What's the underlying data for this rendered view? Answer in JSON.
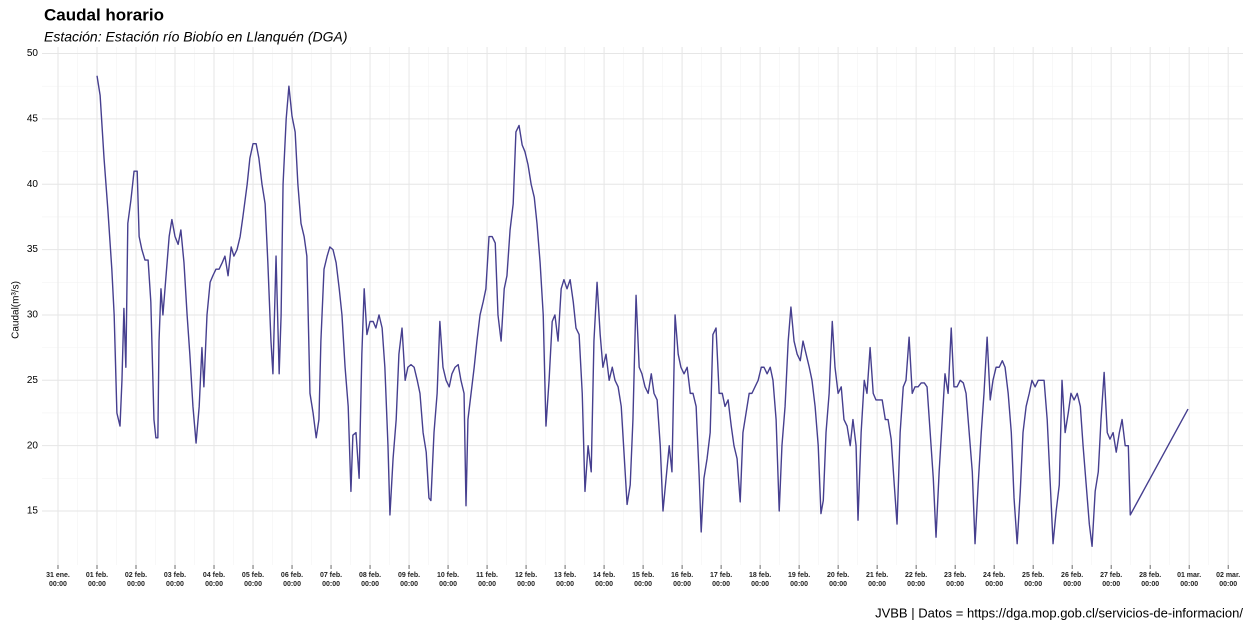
{
  "chart_data": {
    "type": "line",
    "title": "Caudal horario",
    "subtitle": "Estación: Estación río Biobío en Llanquén (DGA)",
    "y_label": "Caudal(m³/s)",
    "caption": "JVBB | Datos = https://dga.mop.gob.cl/servicios-de-informacion/",
    "color": "#463f8f",
    "grid": true,
    "xlim": [
      -0.41,
      30.38
    ],
    "ylim": [
      10.87,
      50.5
    ],
    "yticks": [
      15,
      20,
      25,
      30,
      35,
      40,
      45,
      50
    ],
    "xticks": [
      {
        "value": 0,
        "label": "31 ene.\n00:00"
      },
      {
        "value": 1,
        "label": "01 feb.\n00:00"
      },
      {
        "value": 2,
        "label": "02 feb.\n00:00"
      },
      {
        "value": 3,
        "label": "03 feb.\n00:00"
      },
      {
        "value": 4,
        "label": "04 feb.\n00:00"
      },
      {
        "value": 5,
        "label": "05 feb.\n00:00"
      },
      {
        "value": 6,
        "label": "06 feb.\n00:00"
      },
      {
        "value": 7,
        "label": "07 feb.\n00:00"
      },
      {
        "value": 8,
        "label": "08 feb.\n00:00"
      },
      {
        "value": 9,
        "label": "09 feb.\n00:00"
      },
      {
        "value": 10,
        "label": "10 feb.\n00:00"
      },
      {
        "value": 11,
        "label": "11 feb.\n00:00"
      },
      {
        "value": 12,
        "label": "12 feb.\n00:00"
      },
      {
        "value": 13,
        "label": "13 feb.\n00:00"
      },
      {
        "value": 14,
        "label": "14 feb.\n00:00"
      },
      {
        "value": 15,
        "label": "15 feb.\n00:00"
      },
      {
        "value": 16,
        "label": "16 feb.\n00:00"
      },
      {
        "value": 17,
        "label": "17 feb.\n00:00"
      },
      {
        "value": 18,
        "label": "18 feb.\n00:00"
      },
      {
        "value": 19,
        "label": "19 feb.\n00:00"
      },
      {
        "value": 20,
        "label": "20 feb.\n00:00"
      },
      {
        "value": 21,
        "label": "21 feb.\n00:00"
      },
      {
        "value": 22,
        "label": "22 feb.\n00:00"
      },
      {
        "value": 23,
        "label": "23 feb.\n00:00"
      },
      {
        "value": 24,
        "label": "24 feb.\n00:00"
      },
      {
        "value": 25,
        "label": "25 feb.\n00:00"
      },
      {
        "value": 26,
        "label": "26 feb.\n00:00"
      },
      {
        "value": 27,
        "label": "27 feb.\n00:00"
      },
      {
        "value": 28,
        "label": "28 feb.\n00:00"
      },
      {
        "value": 29,
        "label": "01 mar.\n00:00"
      },
      {
        "value": 30,
        "label": "02 mar.\n00:00"
      }
    ],
    "x": [
      1.0,
      1.08,
      1.18,
      1.28,
      1.38,
      1.44,
      1.51,
      1.59,
      1.64,
      1.69,
      1.74,
      1.79,
      1.87,
      1.95,
      2.03,
      2.08,
      2.15,
      2.23,
      2.31,
      2.38,
      2.46,
      2.51,
      2.56,
      2.59,
      2.64,
      2.69,
      2.77,
      2.85,
      2.92,
      3.0,
      3.08,
      3.15,
      3.23,
      3.31,
      3.38,
      3.46,
      3.54,
      3.62,
      3.69,
      3.74,
      3.82,
      3.9,
      3.97,
      4.05,
      4.13,
      4.21,
      4.28,
      4.36,
      4.44,
      4.51,
      4.59,
      4.67,
      4.74,
      4.85,
      4.92,
      5.0,
      5.08,
      5.15,
      5.23,
      5.31,
      5.38,
      5.46,
      5.51,
      5.59,
      5.67,
      5.72,
      5.77,
      5.85,
      5.92,
      6.0,
      6.08,
      6.15,
      6.23,
      6.31,
      6.38,
      6.46,
      6.54,
      6.62,
      6.69,
      6.74,
      6.82,
      6.9,
      6.97,
      7.05,
      7.13,
      7.21,
      7.28,
      7.36,
      7.44,
      7.51,
      7.56,
      7.64,
      7.72,
      7.79,
      7.85,
      7.92,
      8.0,
      8.08,
      8.15,
      8.23,
      8.31,
      8.38,
      8.46,
      8.51,
      8.59,
      8.67,
      8.74,
      8.82,
      8.9,
      8.97,
      9.05,
      9.13,
      9.21,
      9.28,
      9.36,
      9.44,
      9.51,
      9.56,
      9.64,
      9.72,
      9.79,
      9.87,
      9.95,
      10.03,
      10.1,
      10.18,
      10.26,
      10.33,
      10.41,
      10.46,
      10.51,
      10.59,
      10.67,
      10.74,
      10.82,
      10.9,
      10.97,
      11.05,
      11.13,
      11.21,
      11.28,
      11.36,
      11.44,
      11.51,
      11.59,
      11.67,
      11.74,
      11.82,
      11.9,
      11.97,
      12.05,
      12.13,
      12.21,
      12.28,
      12.36,
      12.44,
      12.51,
      12.59,
      12.67,
      12.74,
      12.82,
      12.9,
      12.97,
      13.05,
      13.13,
      13.21,
      13.28,
      13.36,
      13.44,
      13.51,
      13.59,
      13.67,
      13.74,
      13.82,
      13.9,
      13.97,
      14.05,
      14.13,
      14.21,
      14.28,
      14.36,
      14.44,
      14.51,
      14.59,
      14.67,
      14.74,
      14.82,
      14.9,
      14.97,
      15.05,
      15.13,
      15.21,
      15.28,
      15.36,
      15.44,
      15.51,
      15.59,
      15.67,
      15.74,
      15.82,
      15.9,
      15.97,
      16.05,
      16.13,
      16.21,
      16.28,
      16.36,
      16.44,
      16.49,
      16.56,
      16.64,
      16.72,
      16.79,
      16.87,
      16.95,
      17.03,
      17.1,
      17.18,
      17.26,
      17.33,
      17.41,
      17.49,
      17.56,
      17.64,
      17.72,
      17.79,
      17.87,
      17.95,
      18.03,
      18.1,
      18.18,
      18.26,
      18.33,
      18.41,
      18.49,
      18.56,
      18.64,
      18.72,
      18.79,
      18.87,
      18.95,
      19.03,
      19.1,
      19.18,
      19.26,
      19.33,
      19.41,
      19.49,
      19.56,
      19.62,
      19.69,
      19.77,
      19.85,
      19.92,
      20.0,
      20.08,
      20.15,
      20.23,
      20.31,
      20.38,
      20.46,
      20.51,
      20.59,
      20.67,
      20.74,
      20.82,
      20.9,
      20.97,
      21.05,
      21.13,
      21.21,
      21.28,
      21.36,
      21.44,
      21.51,
      21.59,
      21.67,
      21.74,
      21.82,
      21.9,
      21.97,
      22.05,
      22.13,
      22.21,
      22.28,
      22.36,
      22.44,
      22.51,
      22.59,
      22.67,
      22.74,
      22.82,
      22.9,
      22.97,
      23.05,
      23.13,
      23.21,
      23.28,
      23.36,
      23.44,
      23.51,
      23.59,
      23.67,
      23.74,
      23.82,
      23.9,
      23.97,
      24.05,
      24.13,
      24.21,
      24.28,
      24.36,
      24.44,
      24.51,
      24.59,
      24.67,
      24.74,
      24.82,
      24.9,
      24.97,
      25.05,
      25.13,
      25.21,
      25.28,
      25.36,
      25.44,
      25.51,
      25.59,
      25.67,
      25.74,
      25.82,
      25.9,
      25.97,
      26.05,
      26.13,
      26.21,
      26.28,
      26.36,
      26.44,
      26.51,
      26.59,
      26.67,
      26.74,
      26.82,
      26.9,
      26.97,
      27.05,
      27.13,
      27.21,
      27.28,
      27.36,
      27.44,
      27.49,
      28.97
    ],
    "values": [
      48.3,
      46.8,
      42,
      38,
      33.5,
      30,
      22.5,
      21.5,
      25,
      30.5,
      26,
      37,
      38.8,
      41,
      41,
      36,
      35,
      34.2,
      34.2,
      31,
      22,
      20.6,
      20.6,
      28,
      32,
      30,
      33,
      36,
      37.3,
      36,
      35.4,
      36.5,
      34,
      30,
      27,
      23,
      20.2,
      23,
      27.5,
      24.5,
      30,
      32.5,
      33,
      33.5,
      33.5,
      34,
      34.5,
      33,
      35.2,
      34.5,
      35,
      36,
      37.5,
      40,
      42,
      43.1,
      43.1,
      42,
      40,
      38.5,
      34,
      28,
      25.5,
      34.5,
      25.5,
      30,
      40,
      45,
      47.5,
      45.2,
      44,
      40,
      37,
      36,
      34.5,
      24,
      22.5,
      20.6,
      22,
      28,
      33.5,
      34.5,
      35.2,
      35,
      34,
      32,
      30,
      26,
      23,
      16.5,
      20.8,
      21,
      17.5,
      27,
      32,
      28.5,
      29.5,
      29.5,
      29,
      30,
      29,
      26,
      20,
      14.7,
      19,
      22,
      27,
      29,
      25,
      26,
      26.2,
      26,
      25,
      24,
      21,
      19.5,
      16,
      15.8,
      21,
      24,
      29.5,
      26,
      25,
      24.5,
      25.5,
      26,
      26.2,
      25,
      24,
      15.4,
      22,
      24,
      26,
      28,
      30,
      31,
      32,
      36,
      36,
      35.5,
      30,
      28,
      32,
      33,
      36.5,
      38.5,
      44,
      44.5,
      43,
      42.5,
      41.5,
      40,
      39,
      37,
      34,
      30,
      21.5,
      25,
      29.5,
      30,
      28,
      32,
      32.7,
      32,
      32.7,
      31,
      29,
      28.5,
      24,
      16.5,
      20,
      18,
      28,
      32.5,
      28.5,
      26,
      27,
      25,
      26,
      25,
      24.5,
      23,
      19.5,
      15.5,
      17,
      22,
      31.5,
      26,
      25.5,
      24.5,
      24,
      25.5,
      24,
      23.5,
      20,
      15,
      17.5,
      20,
      18,
      30,
      27,
      26,
      25.5,
      26,
      24,
      24,
      23,
      17.5,
      13.4,
      17.5,
      19,
      21,
      28.5,
      29,
      24,
      24,
      23,
      23.5,
      21.5,
      20,
      19,
      15.7,
      21,
      22.5,
      24,
      24,
      24.5,
      25,
      26,
      26,
      25.5,
      26,
      25,
      22,
      15,
      20,
      23,
      28,
      30.6,
      28,
      27,
      26.5,
      28,
      27,
      26,
      25,
      23,
      20,
      14.8,
      15.8,
      21,
      24,
      29.5,
      26,
      24,
      24.5,
      22,
      21.5,
      20,
      22,
      20,
      14.3,
      21,
      25,
      24,
      27.5,
      24,
      23.5,
      23.5,
      23.5,
      22,
      22,
      20.5,
      17,
      14,
      21,
      24.5,
      25,
      28.3,
      24,
      24.5,
      24.5,
      24.8,
      24.8,
      24.5,
      21,
      17.5,
      13,
      18,
      22,
      25.5,
      24,
      29,
      24.5,
      24.5,
      25,
      24.8,
      24,
      21,
      18,
      12.5,
      17,
      21,
      24,
      28.3,
      23.5,
      25,
      26,
      26,
      26.5,
      26,
      24,
      21,
      16,
      12.5,
      16.5,
      21,
      23,
      24,
      25,
      24.5,
      25,
      25,
      25,
      22,
      17,
      12.5,
      15,
      17,
      25,
      21,
      22.5,
      24,
      23.5,
      24,
      23,
      20,
      17,
      14,
      12.3,
      16.5,
      18,
      22,
      25.6,
      21,
      20.5,
      21,
      19.5,
      21,
      22,
      20,
      20,
      14.7,
      22.8
    ]
  }
}
